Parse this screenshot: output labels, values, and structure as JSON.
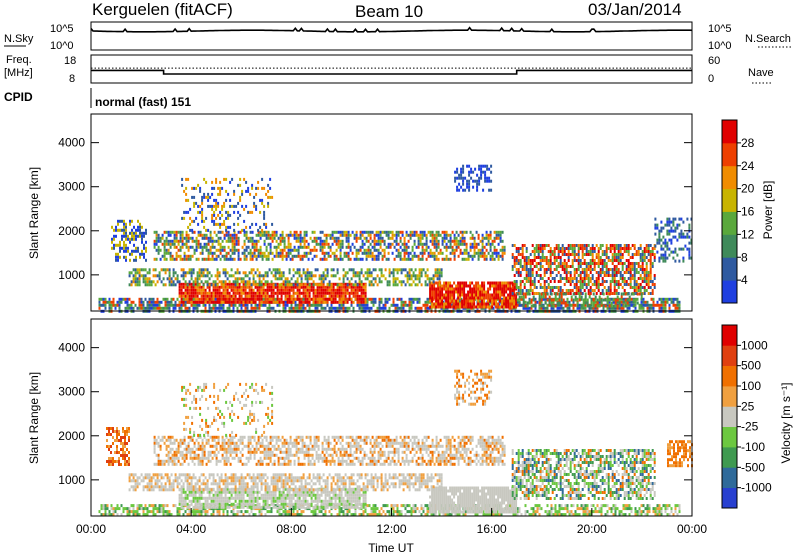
{
  "header": {
    "station": "Kerguelen (fitACF)",
    "beam": "Beam 10",
    "date": "03/Jan/2014"
  },
  "nsky_panel": {
    "label": "N.Sky",
    "left_ticks": [
      "10^5",
      "10^0"
    ],
    "right_ticks": [
      "10^5",
      "10^0"
    ],
    "right_label": "N.Search"
  },
  "freq_panel": {
    "label_line1": "Freq.",
    "label_line2": "[MHz]",
    "left_ticks": [
      "18",
      "8"
    ],
    "right_ticks": [
      "60",
      "0"
    ],
    "right_label": "Nave",
    "series": [
      {
        "name": "Freq.",
        "points": [
          [
            0,
            12.5
          ],
          [
            2.9,
            12.5
          ],
          [
            2.9,
            11.2
          ],
          [
            17.0,
            11.2
          ],
          [
            17.0,
            12.5
          ],
          [
            24,
            12.5
          ]
        ]
      },
      {
        "name": "Nave",
        "points": [
          [
            0,
            32
          ],
          [
            24,
            32
          ]
        ]
      }
    ]
  },
  "cpid": {
    "label": "CPID",
    "value": "normal (fast) 151"
  },
  "chart_data": [
    {
      "type": "heatmap",
      "name": "power",
      "ylabel": "Slant Range [km]",
      "xlabel": "",
      "ylim": [
        180,
        4650
      ],
      "xlim": [
        0,
        24
      ],
      "y_ticks": [
        "1000",
        "2000",
        "3000",
        "4000"
      ],
      "y_tick_values": [
        1000,
        2000,
        3000,
        4000
      ],
      "colorbar": {
        "label": "Power [dB]",
        "ticks": [
          "4",
          "8",
          "12",
          "16",
          "20",
          "24",
          "28"
        ],
        "colors": [
          "#1f3fe0",
          "#2f5aa0",
          "#3f8a5a",
          "#5aa83c",
          "#c8b400",
          "#f08c00",
          "#ee4000",
          "#e00000"
        ]
      },
      "scatter_regions": [
        {
          "t0": 0.3,
          "t1": 23.5,
          "r0": 200,
          "r1": 480,
          "density": 0.7,
          "colors": [
            0,
            1,
            2,
            3,
            6
          ]
        },
        {
          "t0": 3.5,
          "t1": 11.0,
          "r0": 380,
          "r1": 820,
          "density": 0.9,
          "colors": [
            5,
            6,
            7,
            7
          ]
        },
        {
          "t0": 13.5,
          "t1": 17.0,
          "r0": 250,
          "r1": 850,
          "density": 0.9,
          "colors": [
            6,
            7,
            7,
            5
          ]
        },
        {
          "t0": 1.5,
          "t1": 14.0,
          "r0": 800,
          "r1": 1150,
          "density": 0.55,
          "colors": [
            1,
            2,
            3,
            4,
            5
          ]
        },
        {
          "t0": 2.5,
          "t1": 16.5,
          "r0": 1350,
          "r1": 2000,
          "density": 0.6,
          "colors": [
            0,
            1,
            2,
            3,
            4,
            5,
            6
          ]
        },
        {
          "t0": 16.8,
          "t1": 22.5,
          "r0": 600,
          "r1": 1700,
          "density": 0.65,
          "colors": [
            1,
            3,
            5,
            6,
            7
          ]
        },
        {
          "t0": 17.0,
          "t1": 22.0,
          "r0": 300,
          "r1": 600,
          "density": 0.45,
          "colors": [
            2,
            3,
            6
          ]
        },
        {
          "t0": 0.8,
          "t1": 2.2,
          "r0": 1300,
          "r1": 2250,
          "density": 0.5,
          "colors": [
            0,
            1,
            4
          ]
        },
        {
          "t0": 3.6,
          "t1": 7.2,
          "r0": 2000,
          "r1": 3200,
          "density": 0.25,
          "colors": [
            0,
            1,
            4,
            5
          ]
        },
        {
          "t0": 14.5,
          "t1": 16.0,
          "r0": 2900,
          "r1": 3500,
          "density": 0.45,
          "colors": [
            0,
            1
          ]
        },
        {
          "t0": 22.5,
          "t1": 24.0,
          "r0": 1300,
          "r1": 2300,
          "density": 0.4,
          "colors": [
            0,
            1,
            2
          ]
        }
      ]
    },
    {
      "type": "heatmap",
      "name": "velocity",
      "ylabel": "Slant Range [km]",
      "xlabel": "Time UT",
      "ylim": [
        180,
        4650
      ],
      "xlim": [
        0,
        24
      ],
      "x_ticks": [
        "00:00",
        "04:00",
        "08:00",
        "12:00",
        "16:00",
        "20:00",
        "00:00"
      ],
      "x_tick_values": [
        0,
        4,
        8,
        12,
        16,
        20,
        24
      ],
      "y_ticks": [
        "1000",
        "2000",
        "3000",
        "4000"
      ],
      "y_tick_values": [
        1000,
        2000,
        3000,
        4000
      ],
      "colorbar": {
        "label": "Velocity [m s⁻¹]",
        "ticks": [
          "1000",
          "500",
          "100",
          "25",
          "-25",
          "-100",
          "-500",
          "-1000"
        ],
        "colors": [
          "#2840d0",
          "#2f6a9a",
          "#3f9a50",
          "#6cc840",
          "#c8c8c0",
          "#f0a040",
          "#f07000",
          "#e04010",
          "#e00000"
        ]
      },
      "scatter_regions": [
        {
          "t0": 0.3,
          "t1": 23.5,
          "r0": 200,
          "r1": 450,
          "density": 0.6,
          "colors": [
            3,
            3,
            2,
            4,
            5
          ]
        },
        {
          "t0": 3.5,
          "t1": 11.0,
          "r0": 380,
          "r1": 820,
          "density": 0.85,
          "colors": [
            4,
            4,
            4,
            3
          ]
        },
        {
          "t0": 13.5,
          "t1": 17.0,
          "r0": 250,
          "r1": 850,
          "density": 0.9,
          "colors": [
            4,
            4,
            4
          ]
        },
        {
          "t0": 1.5,
          "t1": 14.0,
          "r0": 800,
          "r1": 1150,
          "density": 0.6,
          "colors": [
            4,
            4,
            4,
            5
          ]
        },
        {
          "t0": 2.5,
          "t1": 16.5,
          "r0": 1350,
          "r1": 2000,
          "density": 0.6,
          "colors": [
            4,
            4,
            4,
            5,
            6
          ]
        },
        {
          "t0": 16.8,
          "t1": 22.5,
          "r0": 600,
          "r1": 1700,
          "density": 0.65,
          "colors": [
            4,
            4,
            2,
            3,
            1,
            6
          ]
        },
        {
          "t0": 0.6,
          "t1": 1.5,
          "r0": 1350,
          "r1": 2200,
          "density": 0.55,
          "colors": [
            5,
            6,
            7
          ]
        },
        {
          "t0": 3.6,
          "t1": 7.2,
          "r0": 2000,
          "r1": 3200,
          "density": 0.2,
          "colors": [
            5,
            6,
            3,
            4
          ]
        },
        {
          "t0": 14.5,
          "t1": 16.0,
          "r0": 2700,
          "r1": 3500,
          "density": 0.4,
          "colors": [
            5,
            6,
            4
          ]
        },
        {
          "t0": 23.0,
          "t1": 24.0,
          "r0": 1300,
          "r1": 1900,
          "density": 0.55,
          "colors": [
            5,
            6,
            6
          ]
        }
      ]
    }
  ]
}
